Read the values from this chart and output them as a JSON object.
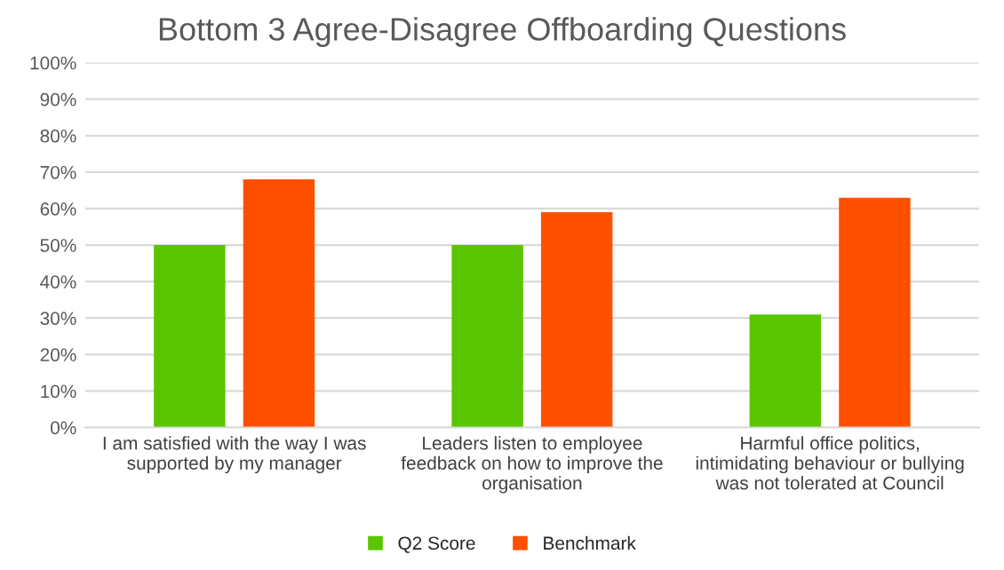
{
  "chart_data": {
    "type": "bar",
    "title": "Bottom 3 Agree-Disagree Offboarding Questions",
    "categories": [
      "I am satisfied with the way I was\nsupported by my manager",
      "Leaders listen to employee\nfeedback on how to improve the\norganisation",
      "Harmful office politics,\nintimidating behaviour or bullying\nwas not tolerated at Council"
    ],
    "series": [
      {
        "name": "Q2 Score",
        "color": "#5ac500",
        "values": [
          50,
          50,
          31
        ]
      },
      {
        "name": "Benchmark",
        "color": "#ff5000",
        "values": [
          68,
          59,
          63
        ]
      }
    ],
    "ylim": [
      0,
      100
    ],
    "yticks": [
      {
        "value": 0,
        "label": "0%"
      },
      {
        "value": 10,
        "label": "10%"
      },
      {
        "value": 20,
        "label": "20%"
      },
      {
        "value": 30,
        "label": "30%"
      },
      {
        "value": 40,
        "label": "40%"
      },
      {
        "value": 50,
        "label": "50%"
      },
      {
        "value": 60,
        "label": "60%"
      },
      {
        "value": 70,
        "label": "70%"
      },
      {
        "value": 80,
        "label": "80%"
      },
      {
        "value": 90,
        "label": "90%"
      },
      {
        "value": 100,
        "label": "100%"
      }
    ],
    "grid": "y",
    "legend": "bottom"
  }
}
